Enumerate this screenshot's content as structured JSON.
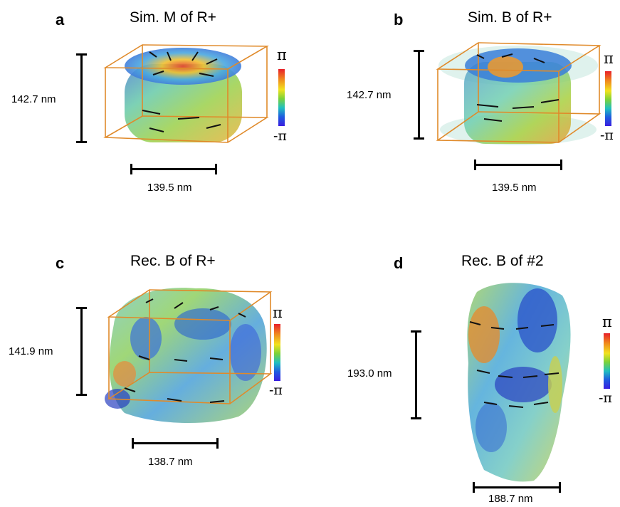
{
  "panels": {
    "a": {
      "letter": "a",
      "title": "Sim. M of R+",
      "height_label": "142.7 nm",
      "width_label": "139.5 nm"
    },
    "b": {
      "letter": "b",
      "title": "Sim. B of R+",
      "height_label": "142.7 nm",
      "width_label": "139.5 nm"
    },
    "c": {
      "letter": "c",
      "title": "Rec. B of R+",
      "height_label": "141.9 nm",
      "width_label": "138.7 nm"
    },
    "d": {
      "letter": "d",
      "title": "Rec. B of #2",
      "height_label": "193.0 nm",
      "width_label": "188.7 nm"
    }
  },
  "colorbar": {
    "max_label": "π",
    "min_label": "-π"
  },
  "colors": {
    "box_outline": "#e08a2a",
    "arrows": "#111111",
    "scale_bar": "#000000"
  },
  "icons": [
    "volume-render-3d",
    "colorbar"
  ]
}
